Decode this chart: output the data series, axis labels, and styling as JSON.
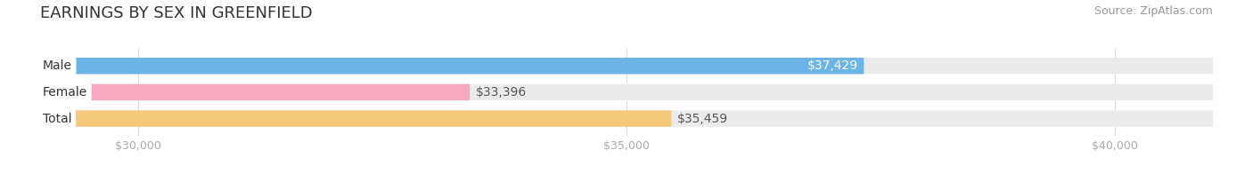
{
  "title": "EARNINGS BY SEX IN GREENFIELD",
  "source": "Source: ZipAtlas.com",
  "categories": [
    "Male",
    "Female",
    "Total"
  ],
  "values": [
    37429,
    33396,
    35459
  ],
  "bar_colors": [
    "#6ab4e8",
    "#f5a8c0",
    "#f5c87a"
  ],
  "bar_bg_color": "#ebebeb",
  "xlim": [
    29000,
    41000
  ],
  "xmin": 29000,
  "xmax": 41000,
  "xticks": [
    30000,
    35000,
    40000
  ],
  "xtick_labels": [
    "$30,000",
    "$35,000",
    "$40,000"
  ],
  "value_labels": [
    "$37,429",
    "$33,396",
    "$35,459"
  ],
  "value_label_colors": [
    "#ffffff",
    "#555555",
    "#555555"
  ],
  "value_inside": [
    true,
    false,
    false
  ],
  "title_fontsize": 13,
  "source_fontsize": 9,
  "tick_fontsize": 9,
  "label_fontsize": 10,
  "value_fontsize": 10,
  "bar_height": 0.62,
  "bar_gap": 0.38,
  "background_color": "#ffffff",
  "title_color": "#333333",
  "source_color": "#999999",
  "tick_color": "#aaaaaa",
  "grid_color": "#dddddd",
  "label_color": "#333333"
}
